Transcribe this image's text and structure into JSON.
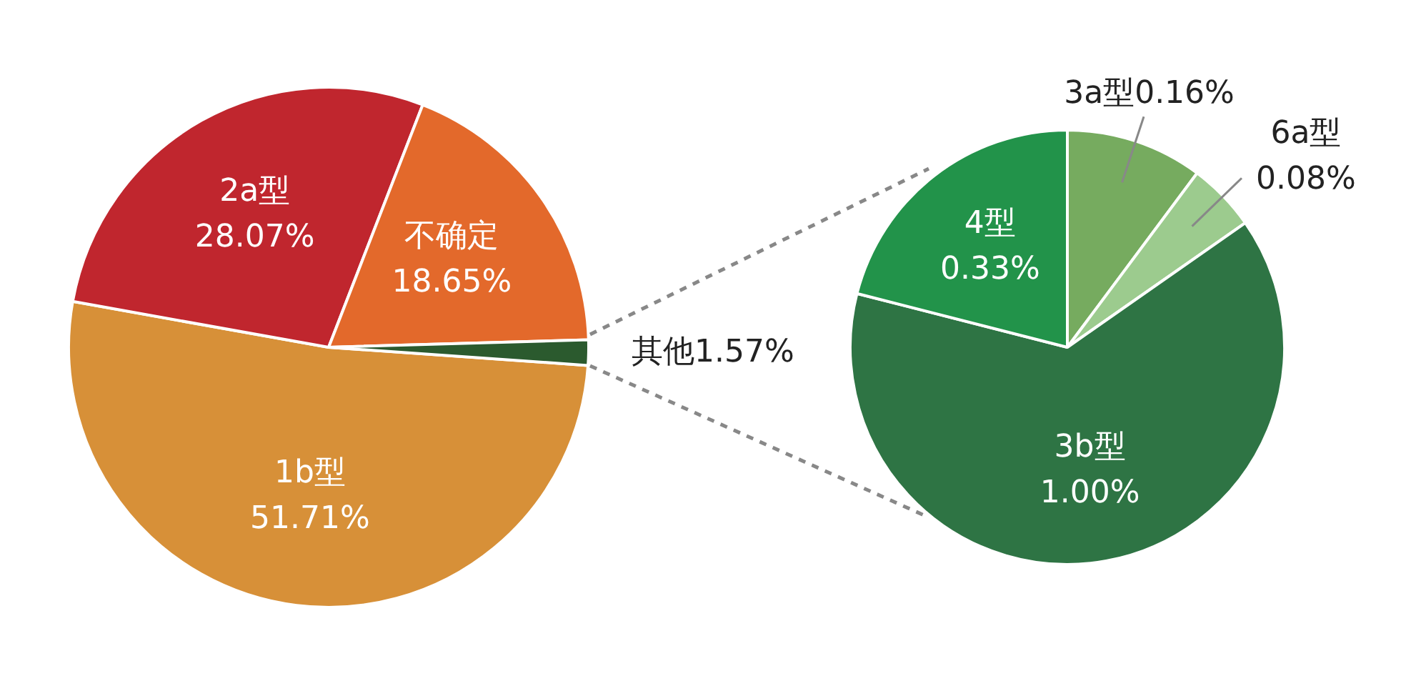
{
  "chart_data": [
    {
      "type": "pie",
      "categories": [
        "1b型",
        "2a型",
        "不确定",
        "其他"
      ],
      "values": [
        51.71,
        28.07,
        18.65,
        1.57
      ],
      "value_labels": [
        "51.71%",
        "28.07%",
        "18.65%",
        "1.57%"
      ],
      "colors": [
        "#d79038",
        "#c0262e",
        "#e3692b",
        "#2b5a2e"
      ],
      "legend": false
    },
    {
      "type": "pie",
      "categories": [
        "3a型",
        "6a型",
        "3b型",
        "4型"
      ],
      "values": [
        0.16,
        0.08,
        1.0,
        0.33
      ],
      "value_labels": [
        "0.16%",
        "0.08%",
        "1.00%",
        "0.33%"
      ],
      "colors": [
        "#76ab5f",
        "#9ccb8e",
        "#2e7444",
        "#22934a"
      ],
      "legend": false
    }
  ]
}
